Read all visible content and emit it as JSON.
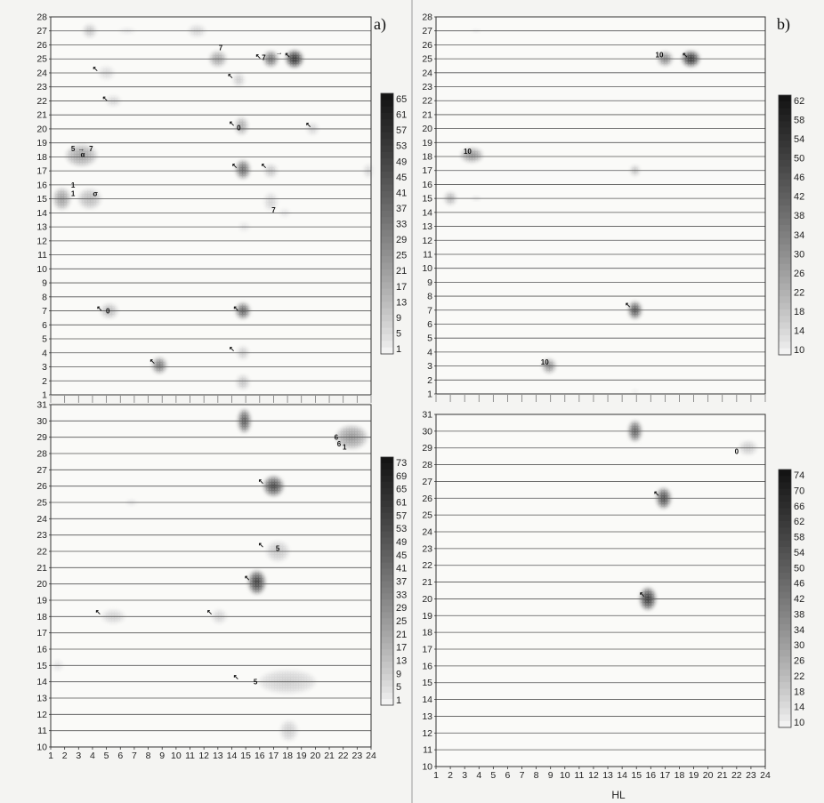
{
  "figure": {
    "panel_a_label": "a)",
    "panel_b_label": "b)",
    "x_axis_label": "HL"
  },
  "colors": {
    "low": "#f2f2f2",
    "high": "#151515",
    "grid": "#555555",
    "frame": "#333333"
  },
  "chart_data": [
    {
      "id": "a-upper",
      "type": "heatmap",
      "panel": "a)",
      "x_range": [
        1,
        24
      ],
      "y_range": [
        1,
        28
      ],
      "y_ticks": [
        1,
        2,
        3,
        4,
        5,
        6,
        7,
        8,
        9,
        10,
        11,
        12,
        13,
        14,
        15,
        16,
        17,
        18,
        19,
        20,
        21,
        22,
        23,
        24,
        25,
        26,
        27,
        28
      ],
      "colorbar": {
        "ticks": [
          65,
          61,
          57,
          53,
          49,
          45,
          41,
          37,
          33,
          29,
          25,
          21,
          17,
          13,
          9,
          5,
          1
        ],
        "min": 1,
        "max": 67
      },
      "blobs": [
        {
          "x": 3.8,
          "y": 27,
          "sx": 0.45,
          "sy": 0.45,
          "v": 12
        },
        {
          "x": 6.5,
          "y": 27,
          "sx": 0.55,
          "sy": 0.18,
          "v": 4
        },
        {
          "x": 11.5,
          "y": 27,
          "sx": 0.6,
          "sy": 0.4,
          "v": 8
        },
        {
          "x": 13,
          "y": 25,
          "sx": 0.6,
          "sy": 0.55,
          "v": 22,
          "label": "7"
        },
        {
          "x": 16.8,
          "y": 25,
          "sx": 0.5,
          "sy": 0.55,
          "v": 40
        },
        {
          "x": 18.5,
          "y": 25,
          "sx": 0.6,
          "sy": 0.6,
          "v": 66
        },
        {
          "x": 5,
          "y": 24,
          "sx": 0.55,
          "sy": 0.45,
          "v": 6
        },
        {
          "x": 14.5,
          "y": 23.5,
          "sx": 0.4,
          "sy": 0.45,
          "v": 10
        },
        {
          "x": 5.5,
          "y": 22,
          "sx": 0.5,
          "sy": 0.35,
          "v": 8
        },
        {
          "x": 14.7,
          "y": 20.2,
          "sx": 0.45,
          "sy": 0.6,
          "v": 20
        },
        {
          "x": 19.8,
          "y": 20,
          "sx": 0.4,
          "sy": 0.4,
          "v": 8
        },
        {
          "x": 3.2,
          "y": 18.1,
          "sx": 1.1,
          "sy": 0.75,
          "v": 22
        },
        {
          "x": 14.8,
          "y": 17.1,
          "sx": 0.5,
          "sy": 0.65,
          "v": 42
        },
        {
          "x": 16.8,
          "y": 17,
          "sx": 0.45,
          "sy": 0.45,
          "v": 12
        },
        {
          "x": 23.8,
          "y": 17,
          "sx": 0.3,
          "sy": 0.45,
          "v": 8
        },
        {
          "x": 1.8,
          "y": 15,
          "sx": 0.6,
          "sy": 0.75,
          "v": 24
        },
        {
          "x": 3.8,
          "y": 15,
          "sx": 0.8,
          "sy": 0.7,
          "v": 15
        },
        {
          "x": 16.8,
          "y": 14.8,
          "sx": 0.45,
          "sy": 0.6,
          "v": 8
        },
        {
          "x": 17.8,
          "y": 14,
          "sx": 0.35,
          "sy": 0.25,
          "v": 4
        },
        {
          "x": 14.9,
          "y": 13,
          "sx": 0.35,
          "sy": 0.3,
          "v": 4
        },
        {
          "x": 5.2,
          "y": 7,
          "sx": 0.6,
          "sy": 0.5,
          "v": 15
        },
        {
          "x": 14.8,
          "y": 7,
          "sx": 0.5,
          "sy": 0.55,
          "v": 46
        },
        {
          "x": 14.8,
          "y": 4,
          "sx": 0.4,
          "sy": 0.45,
          "v": 10
        },
        {
          "x": 8.8,
          "y": 3.1,
          "sx": 0.5,
          "sy": 0.55,
          "v": 38
        },
        {
          "x": 14.8,
          "y": 1.9,
          "sx": 0.45,
          "sy": 0.5,
          "v": 12
        }
      ],
      "marks": [
        {
          "x": 13.2,
          "y": 25.8,
          "text": "7"
        },
        {
          "x": 15.9,
          "y": 25.2,
          "text": "↖"
        },
        {
          "x": 16.3,
          "y": 25.1,
          "text": "7"
        },
        {
          "x": 17.4,
          "y": 25.5,
          "text": "→"
        },
        {
          "x": 18,
          "y": 25.3,
          "text": "↖"
        },
        {
          "x": 4.2,
          "y": 24.3,
          "text": "↖"
        },
        {
          "x": 13.9,
          "y": 23.8,
          "text": "↖"
        },
        {
          "x": 4.9,
          "y": 22.2,
          "text": "↖"
        },
        {
          "x": 14,
          "y": 20.4,
          "text": "↖"
        },
        {
          "x": 14.5,
          "y": 20.1,
          "text": "0"
        },
        {
          "x": 19.5,
          "y": 20.3,
          "text": "↖"
        },
        {
          "x": 2.6,
          "y": 18.6,
          "text": "5"
        },
        {
          "x": 3.2,
          "y": 18.6,
          "text": "→"
        },
        {
          "x": 3.9,
          "y": 18.6,
          "text": "7"
        },
        {
          "x": 3.3,
          "y": 18.2,
          "text": "α"
        },
        {
          "x": 14.2,
          "y": 17.4,
          "text": "↖"
        },
        {
          "x": 16.3,
          "y": 17.4,
          "text": "↖"
        },
        {
          "x": 2.6,
          "y": 16,
          "text": "1"
        },
        {
          "x": 2.6,
          "y": 15.4,
          "text": "1"
        },
        {
          "x": 4.2,
          "y": 15.4,
          "text": "σ"
        },
        {
          "x": 17,
          "y": 14.2,
          "text": "7"
        },
        {
          "x": 4.5,
          "y": 7.2,
          "text": "↖"
        },
        {
          "x": 5.1,
          "y": 7,
          "text": "0"
        },
        {
          "x": 14.3,
          "y": 7.2,
          "text": "↖"
        },
        {
          "x": 14,
          "y": 4.3,
          "text": "↖"
        },
        {
          "x": 8.3,
          "y": 3.4,
          "text": "↖"
        }
      ]
    },
    {
      "id": "a-lower",
      "type": "heatmap",
      "panel": "a)",
      "x_range": [
        1,
        24
      ],
      "y_range": [
        10,
        31
      ],
      "x_ticks": [
        1,
        2,
        3,
        4,
        5,
        6,
        7,
        8,
        9,
        10,
        11,
        12,
        13,
        14,
        15,
        16,
        17,
        18,
        19,
        20,
        21,
        22,
        23,
        24
      ],
      "y_ticks": [
        10,
        11,
        12,
        13,
        14,
        15,
        16,
        17,
        18,
        19,
        20,
        21,
        22,
        23,
        24,
        25,
        26,
        27,
        28,
        29,
        30,
        31
      ],
      "colorbar": {
        "ticks": [
          73,
          69,
          65,
          61,
          57,
          53,
          49,
          45,
          41,
          37,
          33,
          29,
          25,
          21,
          17,
          13,
          9,
          5,
          1
        ],
        "min": 1,
        "max": 75
      },
      "blobs": [
        {
          "x": 14.9,
          "y": 30,
          "sx": 0.45,
          "sy": 0.7,
          "v": 55
        },
        {
          "x": 22.6,
          "y": 29,
          "sx": 1.1,
          "sy": 0.7,
          "v": 28
        },
        {
          "x": 17,
          "y": 26,
          "sx": 0.7,
          "sy": 0.6,
          "v": 60
        },
        {
          "x": 6.8,
          "y": 25,
          "sx": 0.35,
          "sy": 0.15,
          "v": 5
        },
        {
          "x": 17.3,
          "y": 22,
          "sx": 0.8,
          "sy": 0.6,
          "v": 12
        },
        {
          "x": 15.8,
          "y": 20.1,
          "sx": 0.6,
          "sy": 0.7,
          "v": 66
        },
        {
          "x": 5.5,
          "y": 18,
          "sx": 0.8,
          "sy": 0.4,
          "v": 9
        },
        {
          "x": 13.1,
          "y": 18,
          "sx": 0.5,
          "sy": 0.4,
          "v": 9
        },
        {
          "x": 1.5,
          "y": 15,
          "sx": 0.35,
          "sy": 0.3,
          "v": 5
        },
        {
          "x": 18,
          "y": 14,
          "sx": 2,
          "sy": 0.7,
          "v": 10
        },
        {
          "x": 18.1,
          "y": 11,
          "sx": 0.6,
          "sy": 0.6,
          "v": 10
        }
      ],
      "marks": [
        {
          "x": 21.5,
          "y": 29,
          "text": "6"
        },
        {
          "x": 21.7,
          "y": 28.6,
          "text": "6"
        },
        {
          "x": 22.1,
          "y": 28.4,
          "text": "1"
        },
        {
          "x": 16.1,
          "y": 26.3,
          "text": "↖"
        },
        {
          "x": 16.1,
          "y": 22.4,
          "text": "↖"
        },
        {
          "x": 17.3,
          "y": 22.2,
          "text": "5"
        },
        {
          "x": 15.1,
          "y": 20.4,
          "text": "↖"
        },
        {
          "x": 4.4,
          "y": 18.3,
          "text": "↖"
        },
        {
          "x": 12.4,
          "y": 18.3,
          "text": "↖"
        },
        {
          "x": 14.3,
          "y": 14.3,
          "text": "↖"
        },
        {
          "x": 15.7,
          "y": 14,
          "text": "5"
        }
      ]
    },
    {
      "id": "b-upper",
      "type": "heatmap",
      "panel": "b)",
      "x_range": [
        1,
        24
      ],
      "y_range": [
        1,
        28
      ],
      "y_ticks": [
        1,
        2,
        3,
        4,
        5,
        6,
        7,
        8,
        9,
        10,
        11,
        12,
        13,
        14,
        15,
        16,
        17,
        18,
        19,
        20,
        21,
        22,
        23,
        24,
        25,
        26,
        27,
        28
      ],
      "colorbar": {
        "ticks": [
          62,
          58,
          54,
          50,
          46,
          42,
          38,
          34,
          30,
          26,
          22,
          18,
          14,
          10
        ],
        "min": 10,
        "max": 65
      },
      "blobs": [
        {
          "x": 17,
          "y": 25,
          "sx": 0.5,
          "sy": 0.5,
          "v": 36
        },
        {
          "x": 18.8,
          "y": 25,
          "sx": 0.6,
          "sy": 0.55,
          "v": 64
        },
        {
          "x": 3.5,
          "y": 18.1,
          "sx": 0.75,
          "sy": 0.5,
          "v": 32
        },
        {
          "x": 14.9,
          "y": 17,
          "sx": 0.3,
          "sy": 0.35,
          "v": 22
        },
        {
          "x": 2,
          "y": 15,
          "sx": 0.4,
          "sy": 0.45,
          "v": 24
        },
        {
          "x": 3.8,
          "y": 15,
          "sx": 0.3,
          "sy": 0.12,
          "v": 14
        },
        {
          "x": 3.8,
          "y": 27,
          "sx": 0.25,
          "sy": 0.1,
          "v": 12
        },
        {
          "x": 14.9,
          "y": 7,
          "sx": 0.45,
          "sy": 0.6,
          "v": 52
        },
        {
          "x": 8.9,
          "y": 3,
          "sx": 0.45,
          "sy": 0.5,
          "v": 34
        },
        {
          "x": 14.9,
          "y": 1.2,
          "sx": 0.15,
          "sy": 0.1,
          "v": 14
        }
      ],
      "marks": [
        {
          "x": 16.6,
          "y": 25.3,
          "text": "10"
        },
        {
          "x": 18.4,
          "y": 25.3,
          "text": "↖"
        },
        {
          "x": 3.2,
          "y": 18.4,
          "text": "10"
        },
        {
          "x": 14.4,
          "y": 7.4,
          "text": "↖"
        },
        {
          "x": 8.6,
          "y": 3.3,
          "text": "10"
        }
      ]
    },
    {
      "id": "b-lower",
      "type": "heatmap",
      "panel": "b)",
      "x_range": [
        1,
        24
      ],
      "y_range": [
        10,
        31
      ],
      "x_ticks": [
        1,
        2,
        3,
        4,
        5,
        6,
        7,
        8,
        9,
        10,
        11,
        12,
        13,
        14,
        15,
        16,
        17,
        18,
        19,
        20,
        21,
        22,
        23,
        24
      ],
      "y_ticks": [
        10,
        11,
        12,
        13,
        14,
        15,
        16,
        17,
        18,
        19,
        20,
        21,
        22,
        23,
        24,
        25,
        26,
        27,
        28,
        29,
        30,
        31
      ],
      "x_label": "HL",
      "colorbar": {
        "ticks": [
          74,
          70,
          66,
          62,
          58,
          54,
          50,
          46,
          42,
          38,
          34,
          30,
          26,
          22,
          18,
          14,
          10
        ],
        "min": 10,
        "max": 77
      },
      "blobs": [
        {
          "x": 14.9,
          "y": 30,
          "sx": 0.45,
          "sy": 0.6,
          "v": 56
        },
        {
          "x": 22.8,
          "y": 29,
          "sx": 0.6,
          "sy": 0.4,
          "v": 20
        },
        {
          "x": 16.9,
          "y": 26,
          "sx": 0.5,
          "sy": 0.6,
          "v": 64
        },
        {
          "x": 15.8,
          "y": 20,
          "sx": 0.55,
          "sy": 0.65,
          "v": 72
        }
      ],
      "marks": [
        {
          "x": 16.4,
          "y": 26.3,
          "text": "↖"
        },
        {
          "x": 22,
          "y": 28.8,
          "text": "0"
        },
        {
          "x": 15.4,
          "y": 20.3,
          "text": "↖"
        }
      ]
    }
  ]
}
